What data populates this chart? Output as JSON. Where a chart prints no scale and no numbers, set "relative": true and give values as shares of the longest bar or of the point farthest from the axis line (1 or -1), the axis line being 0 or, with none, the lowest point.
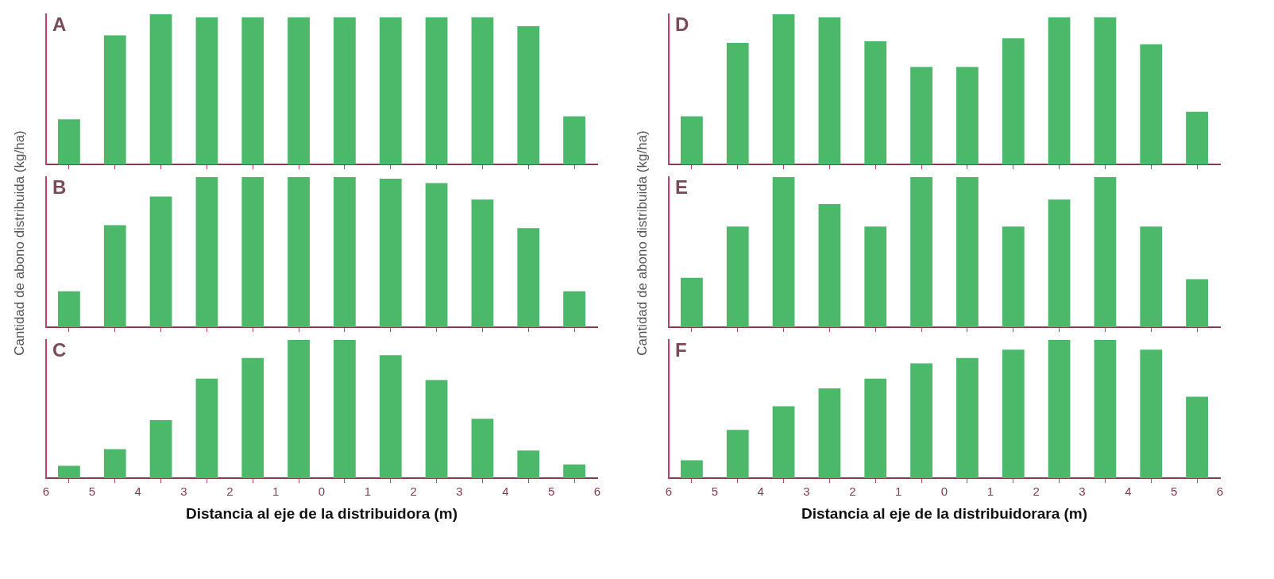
{
  "chart_data": [
    {
      "type": "bar",
      "title": "A",
      "relative": true,
      "x": [
        -5.5,
        -4.5,
        -3.5,
        -2.5,
        -1.5,
        -0.5,
        0.5,
        1.5,
        2.5,
        3.5,
        4.5,
        5.5
      ],
      "xlim": [
        -6,
        6
      ],
      "xticks": [
        -6,
        -5,
        -4,
        -3,
        -2,
        -1,
        0,
        1,
        2,
        3,
        4,
        5,
        6
      ],
      "tick_labels": false,
      "series": [
        {
          "color": "#4cb86a",
          "values": [
            0.3,
            0.86,
            1.0,
            0.98,
            0.98,
            0.98,
            0.98,
            0.98,
            0.98,
            0.98,
            0.92,
            0.32
          ]
        }
      ]
    },
    {
      "type": "bar",
      "title": "B",
      "ylabel": "Cantidad de abono distribuida (kg/ha)",
      "relative": true,
      "x": [
        -5.5,
        -4.5,
        -3.5,
        -2.5,
        -1.5,
        -0.5,
        0.5,
        1.5,
        2.5,
        3.5,
        4.5,
        5.5
      ],
      "xlim": [
        -6,
        6
      ],
      "xticks": [
        -6,
        -5,
        -4,
        -3,
        -2,
        -1,
        0,
        1,
        2,
        3,
        4,
        5,
        6
      ],
      "tick_labels": false,
      "series": [
        {
          "color": "#4cb86a",
          "values": [
            0.24,
            0.68,
            0.87,
            1.0,
            1.0,
            1.0,
            1.0,
            0.99,
            0.96,
            0.85,
            0.66,
            0.24
          ]
        }
      ]
    },
    {
      "type": "bar",
      "title": "C",
      "xlabel": "Distancia al eje de la distribuidora (m)",
      "relative": true,
      "x": [
        -5.5,
        -4.5,
        -3.5,
        -2.5,
        -1.5,
        -0.5,
        0.5,
        1.5,
        2.5,
        3.5,
        4.5,
        5.5
      ],
      "xlim": [
        -6,
        6
      ],
      "xticks": [
        {
          "value": -6,
          "label": "6"
        },
        {
          "value": -5,
          "label": "5"
        },
        {
          "value": -4,
          "label": "4"
        },
        {
          "value": -3,
          "label": "3"
        },
        {
          "value": -2,
          "label": "2"
        },
        {
          "value": -1,
          "label": "1"
        },
        0,
        1,
        2,
        3,
        4,
        5,
        6
      ],
      "tick_labels": "x",
      "series": [
        {
          "color": "#4cb86a",
          "values": [
            0.09,
            0.21,
            0.42,
            0.72,
            0.87,
            1.0,
            1.0,
            0.89,
            0.71,
            0.43,
            0.2,
            0.1
          ]
        }
      ]
    },
    {
      "type": "bar",
      "title": "D",
      "relative": true,
      "x": [
        -5.5,
        -4.5,
        -3.5,
        -2.5,
        -1.5,
        -0.5,
        0.5,
        1.5,
        2.5,
        3.5,
        4.5,
        5.5
      ],
      "xlim": [
        -6,
        6
      ],
      "xticks": [
        -6,
        -5,
        -4,
        -3,
        -2,
        -1,
        0,
        1,
        2,
        3,
        4,
        5,
        6
      ],
      "tick_labels": false,
      "series": [
        {
          "color": "#4cb86a",
          "values": [
            0.32,
            0.81,
            1.0,
            0.98,
            0.82,
            0.65,
            0.65,
            0.84,
            0.98,
            0.98,
            0.8,
            0.35
          ]
        }
      ]
    },
    {
      "type": "bar",
      "title": "E",
      "ylabel": "Cantidad de abono distribuida (kg/ha)",
      "relative": true,
      "x": [
        -5.5,
        -4.5,
        -3.5,
        -2.5,
        -1.5,
        -0.5,
        0.5,
        1.5,
        2.5,
        3.5,
        4.5,
        5.5
      ],
      "xlim": [
        -6,
        6
      ],
      "xticks": [
        -6,
        -5,
        -4,
        -3,
        -2,
        -1,
        0,
        1,
        2,
        3,
        4,
        5,
        6
      ],
      "tick_labels": false,
      "series": [
        {
          "color": "#4cb86a",
          "values": [
            0.33,
            0.67,
            1.0,
            0.82,
            0.67,
            1.0,
            1.0,
            0.67,
            0.85,
            1.0,
            0.67,
            0.32
          ]
        }
      ]
    },
    {
      "type": "bar",
      "title": "F",
      "xlabel": "Distancia al eje de la distribuidorara (m)",
      "relative": true,
      "x": [
        -5.5,
        -4.5,
        -3.5,
        -2.5,
        -1.5,
        -0.5,
        0.5,
        1.5,
        2.5,
        3.5,
        4.5,
        5.5
      ],
      "xlim": [
        -6,
        6
      ],
      "xticks": [
        {
          "value": -6,
          "label": "6"
        },
        {
          "value": -5,
          "label": "5"
        },
        {
          "value": -4,
          "label": "4"
        },
        {
          "value": -3,
          "label": "3"
        },
        {
          "value": -2,
          "label": "2"
        },
        {
          "value": -1,
          "label": "1"
        },
        0,
        1,
        2,
        3,
        4,
        5,
        6
      ],
      "tick_labels": "x",
      "series": [
        {
          "color": "#4cb86a",
          "values": [
            0.13,
            0.35,
            0.52,
            0.65,
            0.72,
            0.83,
            0.87,
            0.93,
            1.0,
            1.0,
            0.93,
            0.59
          ]
        }
      ]
    }
  ]
}
